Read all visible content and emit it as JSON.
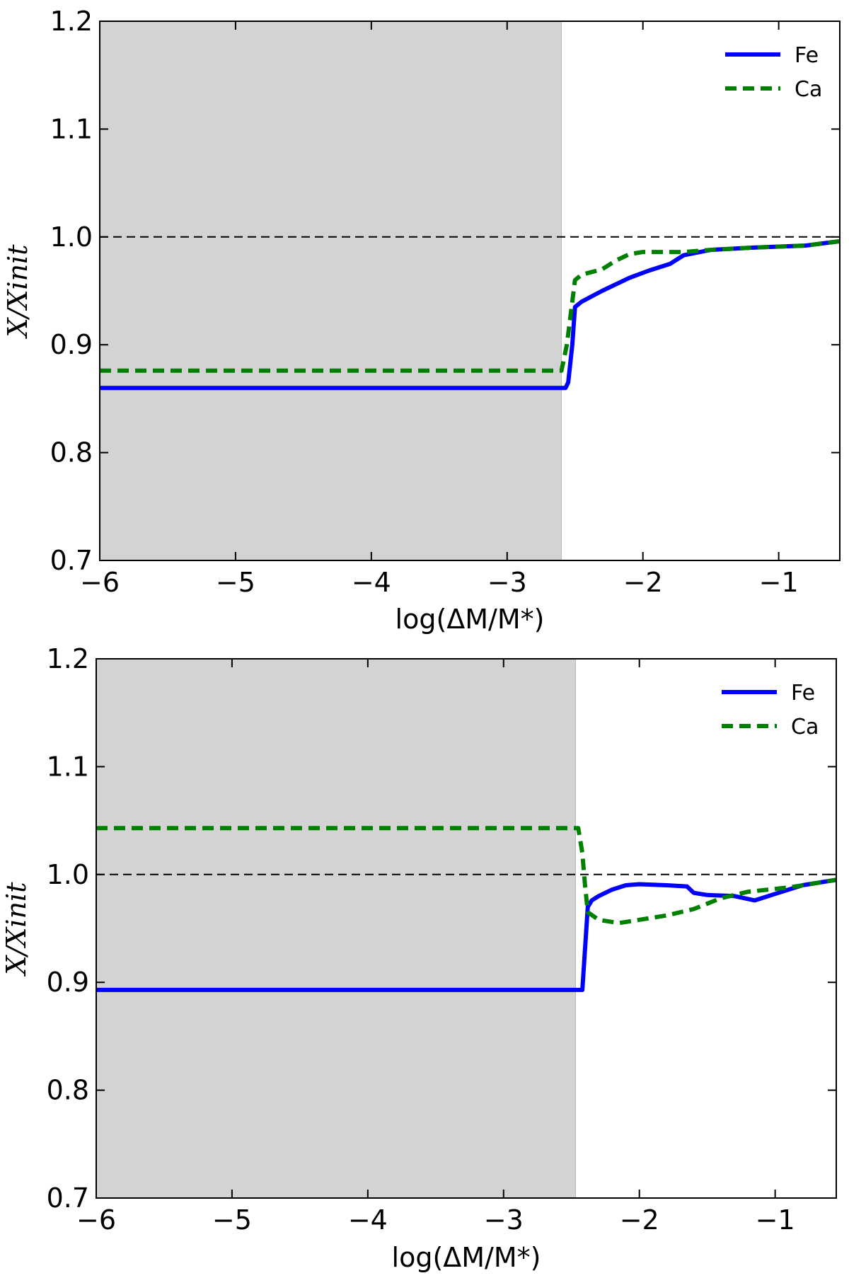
{
  "chart_data": [
    {
      "type": "line",
      "xlabel": "log(ΔM/M*)",
      "ylabel": "X/Xinit",
      "xlim": [
        -6.0,
        -0.55
      ],
      "ylim": [
        0.7,
        1.2
      ],
      "xticks": [
        -6,
        -5,
        -4,
        -3,
        -2,
        -1
      ],
      "xtick_labels": [
        "−6",
        "−5",
        "−4",
        "−3",
        "−2",
        "−1"
      ],
      "yticks": [
        0.7,
        0.8,
        0.9,
        1.0,
        1.1,
        1.2
      ],
      "ytick_labels": [
        "0.7",
        "0.8",
        "0.9",
        "1.0",
        "1.1",
        "1.2"
      ],
      "shaded_region": [
        -6.0,
        -2.6
      ],
      "reference_line": 1.0,
      "legend": "top-right",
      "series": [
        {
          "name": "Fe",
          "color": "#0000ff",
          "style": "solid",
          "x": [
            -6.0,
            -2.57,
            -2.55,
            -2.52,
            -2.5,
            -2.45,
            -2.3,
            -2.1,
            -1.95,
            -1.8,
            -1.7,
            -1.5,
            -1.2,
            -0.8,
            -0.55
          ],
          "y": [
            0.86,
            0.86,
            0.865,
            0.9,
            0.935,
            0.94,
            0.95,
            0.962,
            0.969,
            0.975,
            0.983,
            0.988,
            0.99,
            0.992,
            0.996
          ]
        },
        {
          "name": "Ca",
          "color": "#008000",
          "style": "dashed",
          "x": [
            -6.0,
            -2.6,
            -2.56,
            -2.5,
            -2.45,
            -2.3,
            -2.2,
            -2.1,
            -2.0,
            -1.9,
            -1.7,
            -1.5,
            -1.2,
            -0.8,
            -0.55
          ],
          "y": [
            0.876,
            0.876,
            0.9,
            0.96,
            0.965,
            0.97,
            0.978,
            0.984,
            0.986,
            0.986,
            0.986,
            0.988,
            0.99,
            0.992,
            0.996
          ]
        }
      ]
    },
    {
      "type": "line",
      "xlabel": "log(ΔM/M*)",
      "ylabel": "X/Xinit",
      "xlim": [
        -6.0,
        -0.55
      ],
      "ylim": [
        0.7,
        1.2
      ],
      "xticks": [
        -6,
        -5,
        -4,
        -3,
        -2,
        -1
      ],
      "xtick_labels": [
        "−6",
        "−5",
        "−4",
        "−3",
        "−2",
        "−1"
      ],
      "yticks": [
        0.7,
        0.8,
        0.9,
        1.0,
        1.1,
        1.2
      ],
      "ytick_labels": [
        "0.7",
        "0.8",
        "0.9",
        "1.0",
        "1.1",
        "1.2"
      ],
      "shaded_region": [
        -6.0,
        -2.47
      ],
      "reference_line": 1.0,
      "legend": "top-right",
      "series": [
        {
          "name": "Fe",
          "color": "#0000ff",
          "style": "solid",
          "x": [
            -6.0,
            -2.42,
            -2.38,
            -2.35,
            -2.3,
            -2.2,
            -2.1,
            -2.0,
            -1.8,
            -1.65,
            -1.6,
            -1.5,
            -1.3,
            -1.15,
            -1.0,
            -0.8,
            -0.55
          ],
          "y": [
            0.893,
            0.893,
            0.97,
            0.976,
            0.98,
            0.986,
            0.99,
            0.991,
            0.99,
            0.989,
            0.983,
            0.981,
            0.98,
            0.976,
            0.982,
            0.99,
            0.995
          ]
        },
        {
          "name": "Ca",
          "color": "#008000",
          "style": "dashed",
          "x": [
            -6.0,
            -2.45,
            -2.42,
            -2.4,
            -2.38,
            -2.3,
            -2.15,
            -2.0,
            -1.8,
            -1.6,
            -1.4,
            -1.2,
            -0.9,
            -0.55
          ],
          "y": [
            1.043,
            1.043,
            1.02,
            0.99,
            0.965,
            0.958,
            0.955,
            0.958,
            0.962,
            0.968,
            0.978,
            0.984,
            0.988,
            0.995
          ]
        }
      ]
    }
  ]
}
